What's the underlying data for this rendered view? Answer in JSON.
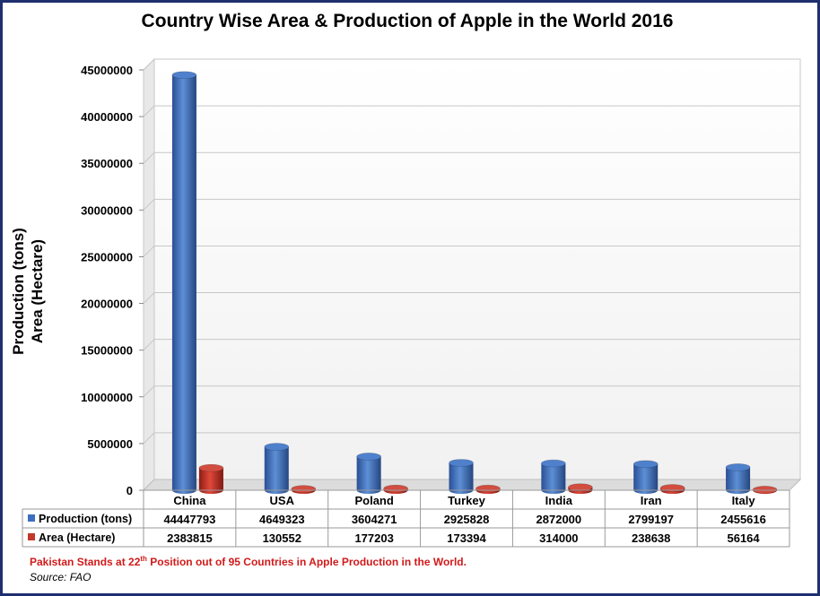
{
  "chart_data": {
    "type": "bar",
    "title": "Country Wise Area & Production of Apple in the World 2016",
    "ylabel_line1": "Production (tons)",
    "ylabel_line2": "Area (Hectare)",
    "categories": [
      "China",
      "USA",
      "Poland",
      "Turkey",
      "India",
      "Iran",
      "Italy"
    ],
    "series": [
      {
        "name": "Production (tons)",
        "color": "#3c6fc0",
        "values": [
          44447793,
          4649323,
          3604271,
          2925828,
          2872000,
          2799197,
          2455616
        ]
      },
      {
        "name": "Area (Hectare)",
        "color": "#c0392b",
        "values": [
          2383815,
          130552,
          177203,
          173394,
          314000,
          238638,
          56164
        ]
      }
    ],
    "ylim": [
      0,
      45000000
    ],
    "yticks": [
      0,
      5000000,
      10000000,
      15000000,
      20000000,
      25000000,
      30000000,
      35000000,
      40000000,
      45000000
    ],
    "grid": true,
    "data_table": true
  },
  "note": {
    "prefix": "Pakistan Stands at 22",
    "sup": "th",
    "suffix": " Position out of 95 Countries in Apple Production in the World."
  },
  "source": "Source: FAO"
}
